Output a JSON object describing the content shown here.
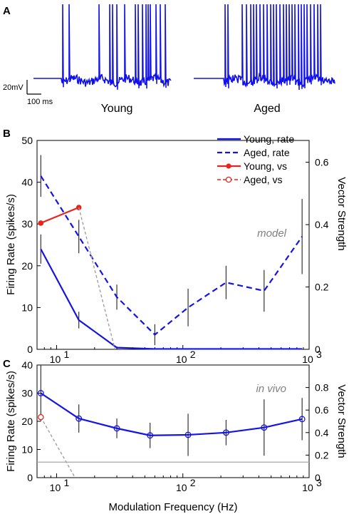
{
  "panel_a": {
    "letter": "A",
    "scale_v": "20mV",
    "scale_t": "100 ms",
    "young_label": "Young",
    "aged_label": "Aged",
    "trace_color": "#1010ee"
  },
  "colors": {
    "young": "#1414e6",
    "aged": "#1414e6",
    "young_vs": "#e8241c",
    "aged_vs": "#e8241c",
    "errorbar": "#333333",
    "dashed_gray": "#a0a0a0",
    "ref_line": "#a8a8a8"
  },
  "chart_data": [
    {
      "panel": "B",
      "type": "line",
      "xlabel": "",
      "ylabel": "Firing Rate (spikes/s)",
      "y2label": "Vector Strength",
      "xscale": "log",
      "xlim": [
        7,
        1000
      ],
      "ylim": [
        0,
        50
      ],
      "y2lim": [
        0,
        0.67
      ],
      "xticks": [
        {
          "value": 10,
          "base": "10",
          "exp": "1"
        },
        {
          "value": 100,
          "base": "10",
          "exp": "2"
        },
        {
          "value": 1000,
          "base": "10",
          "exp": "3"
        }
      ],
      "yticks": [
        "0",
        "10",
        "20",
        "30",
        "40",
        "50"
      ],
      "y2ticks": [
        "0",
        "0.2",
        "0.4",
        "0.6"
      ],
      "annotation": "model",
      "legend_position": "top-right",
      "legend": [
        "Young, rate",
        "Aged, rate",
        "Young, vs",
        "Aged, vs"
      ],
      "series": [
        {
          "name": "Young, rate",
          "style": "solid",
          "axis": "left",
          "x": [
            7.5,
            15,
            30,
            60,
            110,
            220,
            440,
            880
          ],
          "y": [
            24,
            7,
            0.4,
            0.1,
            0.1,
            0.1,
            0.1,
            0.1
          ],
          "err": [
            3.5,
            2,
            0.3,
            0,
            0,
            0,
            0,
            0
          ]
        },
        {
          "name": "Aged, rate",
          "style": "dashed",
          "axis": "left",
          "x": [
            7.5,
            15,
            30,
            60,
            110,
            220,
            440,
            880
          ],
          "y": [
            41.5,
            27,
            12.5,
            3.5,
            10,
            16,
            14,
            27
          ],
          "err": [
            5,
            4,
            3,
            2.5,
            4.5,
            4,
            5,
            9
          ]
        },
        {
          "name": "Young, vs",
          "style": "solid-marker",
          "axis": "right",
          "x": [
            7.5,
            15
          ],
          "y": [
            0.405,
            0.455
          ]
        },
        {
          "name": "Aged, vs",
          "style": "dashed-open-marker",
          "axis": "right",
          "x": [],
          "y": []
        }
      ],
      "vs_dropoff": {
        "x": [
          15,
          29
        ],
        "y": [
          0.455,
          0
        ]
      }
    },
    {
      "panel": "C",
      "type": "line",
      "xlabel": "Modulation Frequency (Hz)",
      "ylabel": "Firing Rate (spikes/s)",
      "y2label": "Vector Strength",
      "xscale": "log",
      "xlim": [
        7,
        1000
      ],
      "ylim": [
        0,
        40
      ],
      "y2lim": [
        0,
        1.0
      ],
      "xticks": [
        {
          "value": 10,
          "base": "10",
          "exp": "1"
        },
        {
          "value": 100,
          "base": "10",
          "exp": "2"
        },
        {
          "value": 1000,
          "base": "10",
          "exp": "3"
        }
      ],
      "yticks": [
        "0",
        "10",
        "20",
        "30",
        "40"
      ],
      "y2ticks": [
        "0",
        "0.2",
        "0.4",
        "0.6",
        "0.8"
      ],
      "annotation": "in vivo",
      "series": [
        {
          "name": "Young, rate",
          "style": "solid-open-marker",
          "axis": "left",
          "x": [
            7.5,
            15,
            30,
            55,
            110,
            220,
            440,
            880
          ],
          "y": [
            30,
            21,
            17.5,
            15,
            15.2,
            16,
            17.8,
            20.8
          ],
          "err": [
            10,
            5,
            3.5,
            4.5,
            7.5,
            4.5,
            10,
            7.5
          ]
        },
        {
          "name": "Aged, vs",
          "style": "dashed-open-marker",
          "axis": "left",
          "x": [
            7.5,
            14
          ],
          "y": [
            21.5,
            0
          ]
        }
      ],
      "ref_line": 5.5
    }
  ]
}
